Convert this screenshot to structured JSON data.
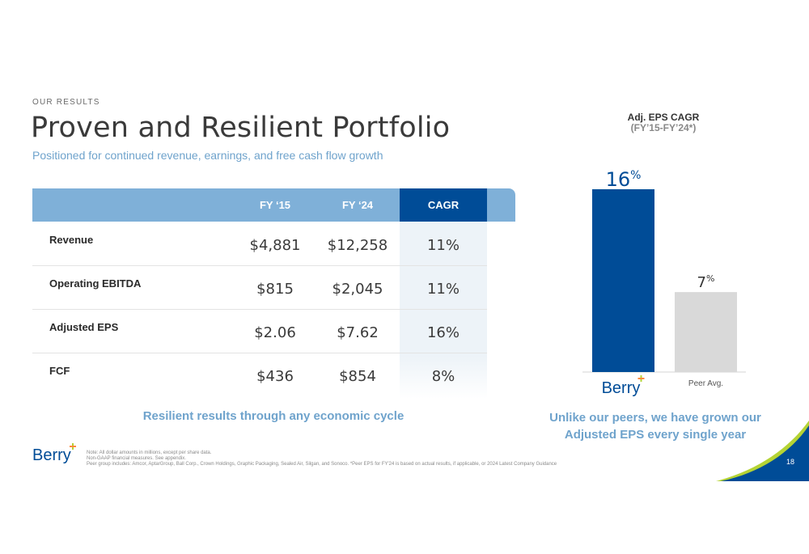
{
  "section_label": "OUR RESULTS",
  "title": "Proven and Resilient Portfolio",
  "subtitle": "Positioned for continued revenue, earnings, and free cash flow growth",
  "table": {
    "headers": [
      "FY ‘15",
      "FY ‘24",
      "CAGR"
    ],
    "rows": [
      {
        "label": "Revenue",
        "fy15": "$4,881",
        "fy24": "$12,258",
        "cagr": "11%"
      },
      {
        "label": "Operating EBITDA",
        "fy15": "$815",
        "fy24": "$2,045",
        "cagr": "11%"
      },
      {
        "label": "Adjusted EPS",
        "fy15": "$2.06",
        "fy24": "$7.62",
        "cagr": "16%"
      },
      {
        "label": "FCF",
        "fy15": "$436",
        "fy24": "$854",
        "cagr": "8%"
      }
    ]
  },
  "caption_left": "Resilient results through any economic cycle",
  "chart_title_1": "Adj. EPS CAGR",
  "chart_title_2": "(FY’15-FY’24*)",
  "chart_data": {
    "type": "bar",
    "categories": [
      "Berry",
      "Peer Avg."
    ],
    "values": [
      16,
      7
    ],
    "unit": "%",
    "colors": [
      "#004c97",
      "#d9d9d9"
    ],
    "label_colors": [
      "#004c97",
      "#333333"
    ],
    "ylim": [
      0,
      16
    ]
  },
  "caption_right_1": "Unlike our peers, we have grown our",
  "caption_right_2": "Adjusted EPS every single year",
  "logo_text": "Berry",
  "notes": [
    "Note:  All dollar amounts in millions, except per share data.",
    "Non-GAAP financial measures.  See appendix.",
    "Peer group includes: Amcor, AptarGroup, Ball Corp., Crown Holdings, Graphic Packaging, Sealed Air, Silgan, and Sonoco. *Peer EPS for FY'24 is based on actual results, if applicable, or 2024 Latest Company Guidance"
  ],
  "page_number": "18",
  "colors": {
    "navy": "#004c97",
    "light_blue": "#7fb0d8",
    "accent_blue": "#6fa3cc",
    "gray": "#d9d9d9",
    "green": "#b5d334"
  }
}
